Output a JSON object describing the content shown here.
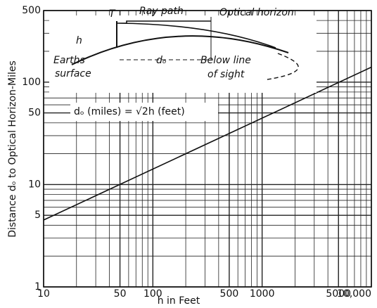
{
  "chart_data": {
    "type": "line",
    "xlabel": "h in Feet",
    "ylabel": "Distance dₒ to Optical Horizon-Miles",
    "x": [
      10,
      10000
    ],
    "values": [
      4.5,
      140
    ],
    "color": "#111111",
    "xscale": "log",
    "yscale": "log",
    "grid": true,
    "xlim": [
      10,
      10000
    ],
    "ylim": [
      1,
      500
    ],
    "xticks": [
      10,
      50,
      100,
      500,
      1000,
      5000,
      {
        "value": 10000,
        "label": "10,000"
      }
    ],
    "yticks": [
      1,
      5,
      10,
      50,
      100,
      500
    ],
    "x_minor_ticks": [
      20,
      30,
      40,
      60,
      70,
      80,
      90,
      200,
      300,
      400,
      600,
      700,
      800,
      900,
      2000,
      3000,
      4000,
      6000,
      7000,
      8000,
      9000
    ],
    "y_minor_ticks": [
      2,
      3,
      4,
      6,
      7,
      8,
      9,
      20,
      30,
      40,
      60,
      70,
      80,
      90,
      200,
      300,
      400
    ],
    "annotations": {
      "formula": "dₒ (miles) = √2h (feet)",
      "t": "T",
      "ray_path": "Ray path",
      "optical_horizon": "Optical horizon",
      "h": "h",
      "d": "dₒ",
      "earths": "Earths",
      "surface": "surface",
      "below_line": "Below line",
      "of_sight": "of sight"
    }
  }
}
